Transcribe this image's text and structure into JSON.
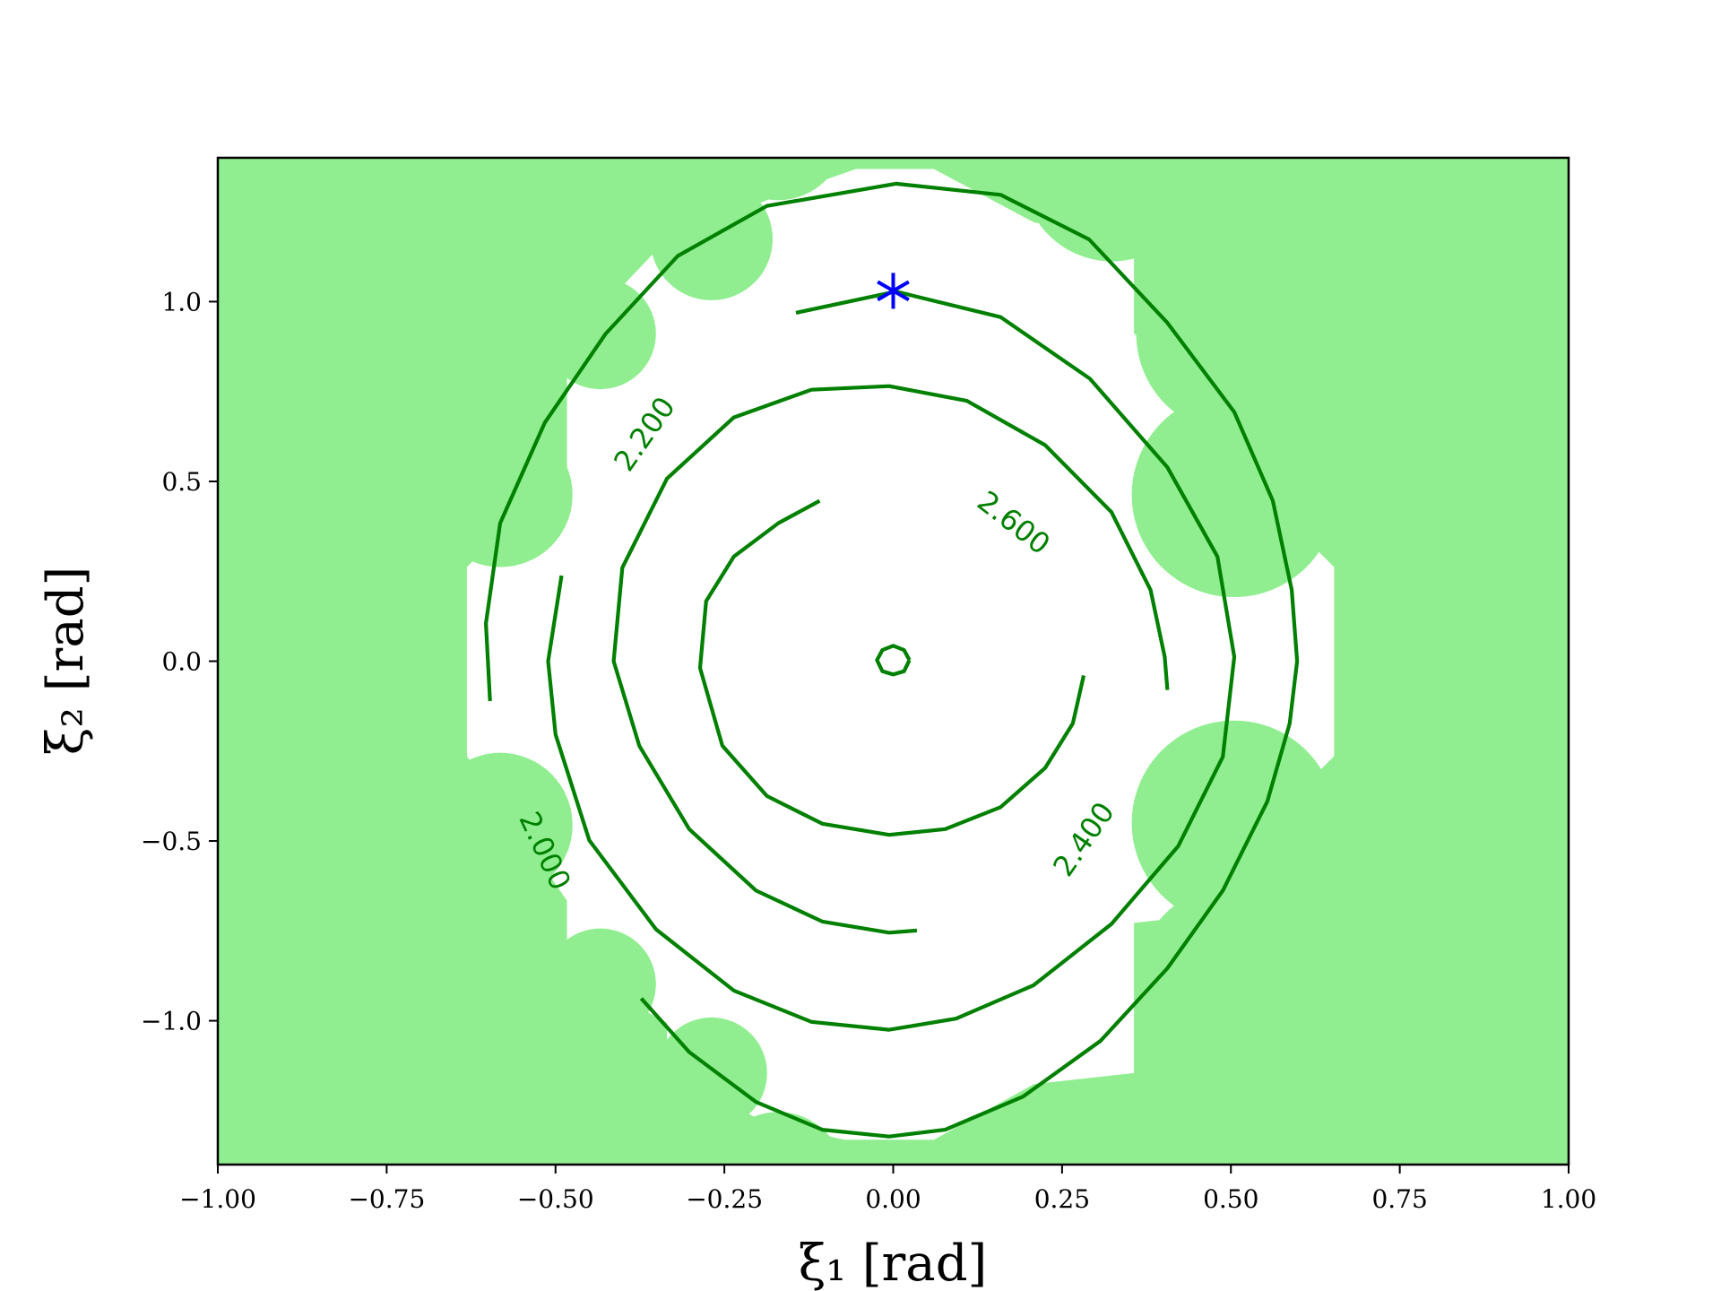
{
  "chart_data": {
    "type": "contour",
    "xlabel": "ξ₁ [rad]",
    "ylabel": "ξ₂ [rad]",
    "xlim": [
      -1,
      1
    ],
    "ylim": [
      -1.4,
      1.4
    ],
    "xticks": [
      {
        "value": -1,
        "label": "−1.00"
      },
      {
        "value": -0.75,
        "label": "−0.75"
      },
      {
        "value": -0.5,
        "label": "−0.50"
      },
      {
        "value": -0.25,
        "label": "−0.25"
      },
      {
        "value": 0,
        "label": "0.00"
      },
      {
        "value": 0.25,
        "label": "0.25"
      },
      {
        "value": 0.5,
        "label": "0.50"
      },
      {
        "value": 0.75,
        "label": "0.75"
      },
      {
        "value": 1,
        "label": "1.00"
      }
    ],
    "yticks": [
      {
        "value": -1,
        "label": "−1.0"
      },
      {
        "value": -0.5,
        "label": "−0.5"
      },
      {
        "value": 0,
        "label": "0.0"
      },
      0.5,
      {
        "value": 1,
        "label": "1.0"
      }
    ],
    "region_color": "#90ee90",
    "contours": [
      {
        "level": 2,
        "label": "2.000",
        "color": "#008000",
        "x": [
          -0.597,
          -0.603,
          -0.582,
          -0.516,
          -0.426,
          -0.319,
          -0.187,
          0.004,
          0.159,
          0.29,
          0.406,
          0.505,
          0.562,
          0.59,
          0.598,
          0.587,
          0.554,
          0.488,
          0.406,
          0.307,
          0.192,
          0.077,
          -0.006,
          -0.105,
          -0.203,
          -0.302,
          -0.373
        ],
        "y": [
          -0.111,
          0.105,
          0.384,
          0.663,
          0.91,
          1.127,
          1.266,
          1.328,
          1.297,
          1.173,
          0.941,
          0.693,
          0.446,
          0.198,
          0,
          -0.173,
          -0.39,
          -0.638,
          -0.854,
          -1.056,
          -1.211,
          -1.303,
          -1.322,
          -1.303,
          -1.226,
          -1.087,
          -0.938
        ]
      },
      {
        "level": 2.2,
        "label": "2.200",
        "color": "#008000",
        "x": [
          -0.144,
          0.004,
          0.159,
          0.291,
          0.406,
          0.48,
          0.505,
          0.488,
          0.422,
          0.323,
          0.208,
          0.093,
          -0.006,
          -0.121,
          -0.236,
          -0.351,
          -0.45,
          -0.5,
          -0.511,
          -0.491
        ],
        "y": [
          0.969,
          1.028,
          0.957,
          0.786,
          0.539,
          0.291,
          0.012,
          -0.266,
          -0.514,
          -0.731,
          -0.901,
          -0.994,
          -1.025,
          -1.003,
          -0.916,
          -0.746,
          -0.498,
          -0.204,
          0,
          0.238
        ]
      },
      {
        "level": 2.4,
        "label": "2.400",
        "color": "#008000",
        "x": [
          0.035,
          -0.006,
          -0.105,
          -0.203,
          -0.302,
          -0.376,
          -0.414,
          -0.401,
          -0.335,
          -0.236,
          -0.121,
          -0.006,
          0.109,
          0.225,
          0.323,
          0.381,
          0.402,
          0.406
        ],
        "y": [
          -0.749,
          -0.755,
          -0.724,
          -0.638,
          -0.467,
          -0.235,
          0,
          0.26,
          0.508,
          0.678,
          0.755,
          0.765,
          0.724,
          0.601,
          0.415,
          0.198,
          0.012,
          -0.08
        ]
      },
      {
        "level": 2.6,
        "label": "2.600",
        "color": "#008000",
        "x": [
          0.282,
          0.266,
          0.225,
          0.159,
          0.077,
          -0.006,
          -0.105,
          -0.187,
          -0.253,
          -0.286,
          -0.277,
          -0.236,
          -0.17,
          -0.109
        ],
        "y": [
          -0.04,
          -0.173,
          -0.297,
          -0.406,
          -0.467,
          -0.483,
          -0.452,
          -0.375,
          -0.235,
          -0.019,
          0.167,
          0.291,
          0.384,
          0.446
        ]
      },
      {
        "color": "#008000",
        "x": [
          0.024,
          0.016,
          0,
          -0.016,
          -0.024,
          -0.016,
          0,
          0.016,
          0.024
        ],
        "y": [
          0.003,
          -0.028,
          -0.037,
          -0.028,
          0.003,
          0.031,
          0.043,
          0.031,
          0.003
        ]
      }
    ],
    "marker": {
      "x": 0,
      "y": 1.03,
      "color": "#0000ff"
    }
  }
}
